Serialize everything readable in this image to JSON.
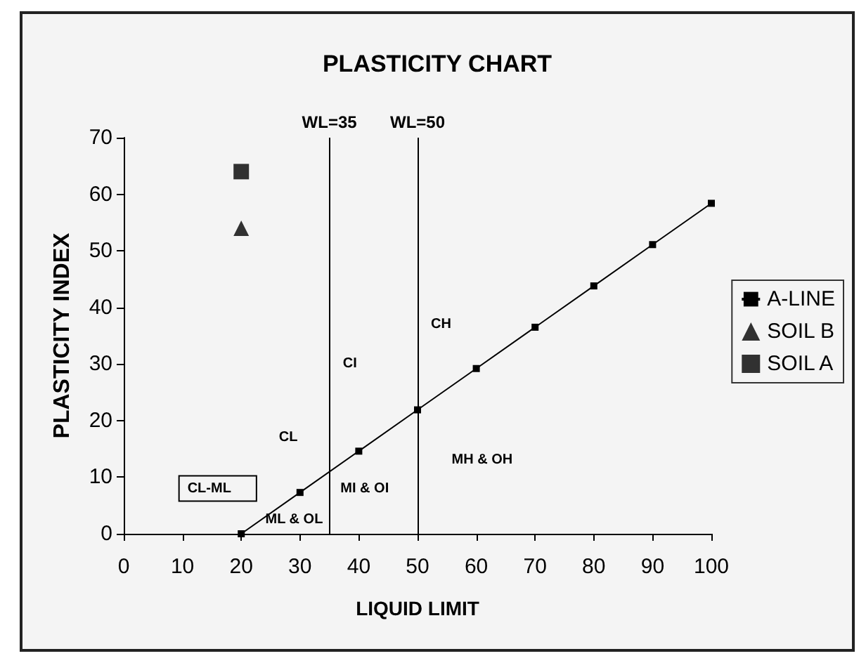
{
  "chart_data": {
    "type": "line",
    "title": "PLASTICITY CHART",
    "xlabel": "LIQUID LIMIT",
    "ylabel": "PLASTICITY INDEX",
    "xlim": [
      0,
      100
    ],
    "xticks": [
      0,
      10,
      20,
      30,
      40,
      50,
      60,
      70,
      80,
      90,
      100
    ],
    "ylim": [
      0,
      70
    ],
    "yticks": [
      0,
      10,
      20,
      30,
      40,
      50,
      60,
      70
    ],
    "grid": false,
    "legend": "right",
    "series": [
      {
        "name": "A-LINE",
        "marker": "square",
        "color": "#000000",
        "x": [
          20,
          30,
          40,
          50,
          60,
          70,
          80,
          90,
          100
        ],
        "values": [
          0,
          7.3,
          14.6,
          21.9,
          29.2,
          36.5,
          43.8,
          51.1,
          58.4
        ]
      },
      {
        "name": "SOIL B",
        "type": "scatter",
        "marker": "triangle",
        "color": "#000000",
        "x": [
          20
        ],
        "values": [
          54
        ]
      },
      {
        "name": "SOIL A",
        "type": "scatter",
        "marker": "square",
        "color": "#000000",
        "x": [
          20
        ],
        "values": [
          64
        ]
      }
    ],
    "ref_lines": [
      {
        "axis": "x",
        "value": 35,
        "label": "WL=35",
        "color": "#000000"
      },
      {
        "axis": "x",
        "value": 50,
        "label": "WL=50",
        "color": "#000000"
      }
    ],
    "annotations": [
      "CH",
      "CI",
      "CL",
      "CL-ML",
      "ML & OL",
      "MI & OI",
      "MH & OH"
    ]
  }
}
